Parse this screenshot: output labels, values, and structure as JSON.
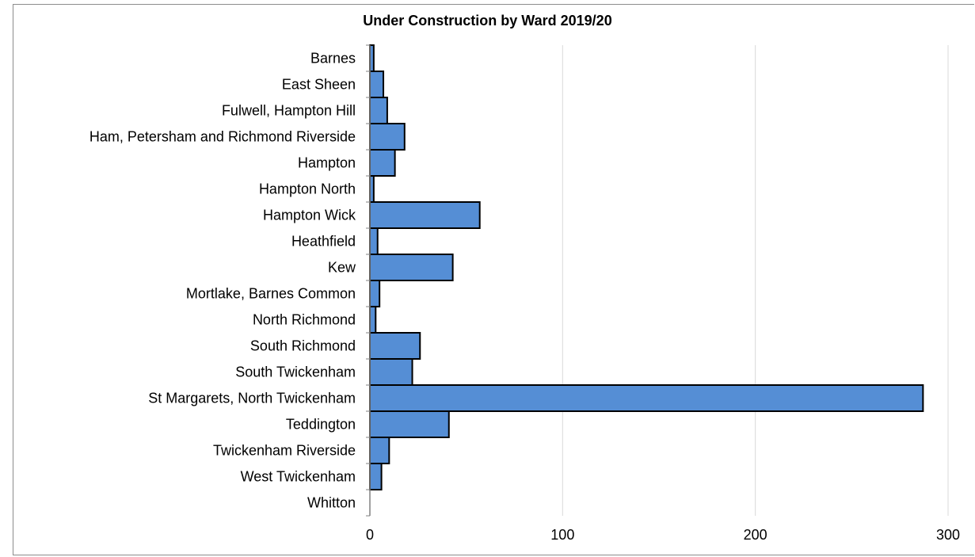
{
  "chart_data": {
    "type": "bar",
    "orientation": "horizontal",
    "title": "Under Construction by Ward 2019/20",
    "xlabel": "",
    "ylabel": "",
    "categories": [
      "Barnes",
      "East Sheen",
      "Fulwell, Hampton Hill",
      "Ham, Petersham and Richmond Riverside",
      "Hampton",
      "Hampton North",
      "Hampton Wick",
      "Heathfield",
      "Kew",
      "Mortlake, Barnes Common",
      "North Richmond",
      "South Richmond",
      "South Twickenham",
      "St Margarets, North Twickenham",
      "Teddington",
      "Twickenham Riverside",
      "West Twickenham",
      "Whitton"
    ],
    "values": [
      2,
      7,
      9,
      18,
      13,
      2,
      57,
      4,
      43,
      5,
      3,
      26,
      22,
      287,
      41,
      10,
      6,
      0
    ],
    "xlim": [
      0,
      300
    ],
    "xticks": [
      0,
      100,
      200,
      300
    ],
    "grid": "vertical",
    "legend": "none",
    "bar_color": "#558ed5",
    "bar_edge_color": "#000000",
    "grid_color": "#d9d9d9",
    "axis_color": "#808080"
  }
}
